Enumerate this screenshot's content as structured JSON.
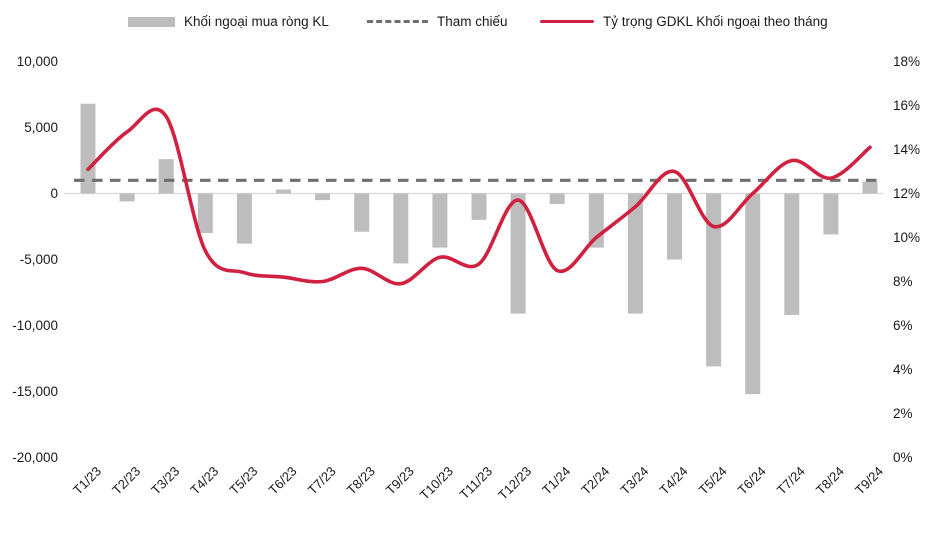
{
  "legend": {
    "bar_label": "Khối ngoại mua ròng KL",
    "reference_label": "Tham chiếu",
    "line_label": "Tỷ trọng GDKL Khối ngoại theo tháng"
  },
  "colors": {
    "bar": "#bdbdbd",
    "reference": "#6f6f6f",
    "line": "#d02140",
    "zero_line": "#d9d9d9",
    "text": "#1a1a1a"
  },
  "chart_data": {
    "type": "bar+line combo, dual axis",
    "title": "",
    "grid": false,
    "legend_position": "top",
    "categories": [
      "T1/23",
      "T2/23",
      "T3/23",
      "T4/23",
      "T5/23",
      "T6/23",
      "T7/23",
      "T8/23",
      "T9/23",
      "T10/23",
      "T11/23",
      "T12/23",
      "T1/24",
      "T2/24",
      "T3/24",
      "T4/24",
      "T5/24",
      "T6/24",
      "T7/24",
      "T8/24",
      "T9/24"
    ],
    "series": [
      {
        "name": "Khối ngoại mua ròng KL",
        "type": "bar",
        "axis": "left",
        "values": [
          6800,
          -600,
          2600,
          -3000,
          -3800,
          300,
          -500,
          -2900,
          -5300,
          -4100,
          -2000,
          -9100,
          -800,
          -4100,
          -9100,
          -5000,
          -13100,
          -15200,
          -9200,
          -3100,
          900
        ]
      },
      {
        "name": "Tham chiếu",
        "type": "reference-line",
        "axis": "right",
        "value": 12.6
      },
      {
        "name": "Tỷ trọng GDKL Khối ngoại theo tháng",
        "type": "line",
        "axis": "right",
        "values": [
          13.1,
          14.8,
          15.5,
          9.4,
          8.4,
          8.2,
          8.0,
          8.6,
          7.9,
          9.1,
          8.8,
          11.7,
          8.5,
          10.0,
          11.4,
          13.0,
          10.5,
          12.0,
          13.5,
          12.7,
          14.1
        ]
      }
    ],
    "left_axis": {
      "min": -20000,
      "max": 10000,
      "ticks": [
        {
          "label": "10,000",
          "value": 10000
        },
        {
          "label": "5,000",
          "value": 5000
        },
        {
          "label": "0",
          "value": 0
        },
        {
          "label": "-5,000",
          "value": -5000
        },
        {
          "label": "-10,000",
          "value": -10000
        },
        {
          "label": "-15,000",
          "value": -15000
        },
        {
          "label": "-20,000",
          "value": -20000
        }
      ]
    },
    "right_axis": {
      "min": 0,
      "max": 18,
      "ticks": [
        {
          "label": "18%",
          "value": 18
        },
        {
          "label": "16%",
          "value": 16
        },
        {
          "label": "14%",
          "value": 14
        },
        {
          "label": "12%",
          "value": 12
        },
        {
          "label": "10%",
          "value": 10
        },
        {
          "label": "8%",
          "value": 8
        },
        {
          "label": "6%",
          "value": 6
        },
        {
          "label": "4%",
          "value": 4
        },
        {
          "label": "2%",
          "value": 2
        },
        {
          "label": "0%",
          "value": 0
        }
      ]
    }
  }
}
